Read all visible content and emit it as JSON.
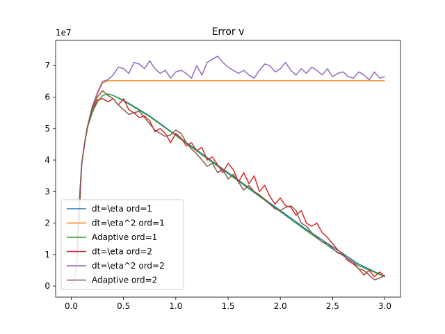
{
  "chart_data": {
    "type": "line",
    "title": "Error v",
    "xlabel": "",
    "ylabel": "",
    "y_multiplier_label": "1e7",
    "xlim": [
      -0.15,
      3.15
    ],
    "ylim": [
      -0.35,
      7.8
    ],
    "xticks": [
      0.0,
      0.5,
      1.0,
      1.5,
      2.0,
      2.5,
      3.0
    ],
    "xtick_labels": [
      "0.0",
      "0.5",
      "1.0",
      "1.5",
      "2.0",
      "2.5",
      "3.0"
    ],
    "yticks": [
      0,
      1,
      2,
      3,
      4,
      5,
      6,
      7
    ],
    "ytick_labels": [
      "0",
      "1",
      "2",
      "3",
      "4",
      "5",
      "6",
      "7"
    ],
    "grid": false,
    "legend_position": "lower-left",
    "series": [
      {
        "name": "dt=\\eta ord=1",
        "color": "#1f77b4",
        "x": [
          0.05,
          0.08,
          0.1,
          0.13,
          0.16,
          0.2,
          0.25,
          0.3,
          0.35,
          0.4,
          0.5,
          0.75,
          1.0,
          1.25,
          1.5,
          1.75,
          2.0,
          2.25,
          2.5,
          2.75,
          3.0
        ],
        "y": [
          1.0,
          2.9,
          3.9,
          4.6,
          5.1,
          5.5,
          5.85,
          6.05,
          6.1,
          6.05,
          5.9,
          5.4,
          4.8,
          4.2,
          3.6,
          3.0,
          2.4,
          1.8,
          1.25,
          0.7,
          0.3
        ]
      },
      {
        "name": "dt=\\eta^2 ord=1",
        "color": "#ff7f0e",
        "x": [
          0.05,
          0.08,
          0.1,
          0.13,
          0.16,
          0.2,
          0.25,
          0.3,
          0.35,
          0.4,
          0.5,
          1.0,
          1.5,
          2.0,
          2.5,
          3.0
        ],
        "y": [
          1.0,
          2.9,
          3.9,
          4.6,
          5.1,
          5.6,
          6.1,
          6.45,
          6.52,
          6.52,
          6.52,
          6.52,
          6.52,
          6.52,
          6.52,
          6.52
        ]
      },
      {
        "name": "Adaptive ord=1",
        "color": "#2ca02c",
        "x": [
          0.05,
          0.08,
          0.1,
          0.13,
          0.16,
          0.2,
          0.25,
          0.3,
          0.35,
          0.4,
          0.5,
          0.75,
          1.0,
          1.25,
          1.5,
          1.75,
          2.0,
          2.25,
          2.5,
          2.75,
          3.0
        ],
        "y": [
          1.0,
          2.9,
          3.9,
          4.6,
          5.1,
          5.5,
          5.85,
          6.05,
          6.1,
          6.05,
          5.88,
          5.38,
          4.78,
          4.17,
          3.57,
          2.97,
          2.36,
          1.76,
          1.18,
          0.65,
          0.3
        ]
      },
      {
        "name": "dt=\\eta ord=2",
        "color": "#d62728",
        "x": [
          0.05,
          0.1,
          0.15,
          0.2,
          0.25,
          0.3,
          0.35,
          0.4,
          0.45,
          0.5,
          0.55,
          0.6,
          0.65,
          0.7,
          0.75,
          0.8,
          0.85,
          0.9,
          0.95,
          1.0,
          1.05,
          1.1,
          1.15,
          1.2,
          1.25,
          1.3,
          1.35,
          1.4,
          1.45,
          1.5,
          1.55,
          1.6,
          1.65,
          1.7,
          1.75,
          1.8,
          1.85,
          1.9,
          1.95,
          2.0,
          2.05,
          2.1,
          2.15,
          2.2,
          2.25,
          2.3,
          2.35,
          2.4,
          2.45,
          2.5,
          2.55,
          2.6,
          2.65,
          2.7,
          2.75,
          2.8,
          2.85,
          2.9,
          2.95,
          3.0
        ],
        "y": [
          1.0,
          3.9,
          5.0,
          5.6,
          5.9,
          5.95,
          5.85,
          5.95,
          5.75,
          5.95,
          5.6,
          5.5,
          5.35,
          5.4,
          5.25,
          4.9,
          5.0,
          4.85,
          4.55,
          4.85,
          4.7,
          4.45,
          4.55,
          4.3,
          4.4,
          4.0,
          4.1,
          3.85,
          3.6,
          3.9,
          3.7,
          3.3,
          3.6,
          3.25,
          3.5,
          3.0,
          3.2,
          2.85,
          2.6,
          2.8,
          2.55,
          2.5,
          2.25,
          2.4,
          2.0,
          1.9,
          2.0,
          1.7,
          1.55,
          1.35,
          1.15,
          1.0,
          0.8,
          0.7,
          0.55,
          0.35,
          0.5,
          0.3,
          0.45,
          0.3
        ]
      },
      {
        "name": "dt=\\eta^2 ord=2",
        "color": "#9467bd",
        "x": [
          0.05,
          0.1,
          0.15,
          0.2,
          0.25,
          0.3,
          0.35,
          0.4,
          0.45,
          0.5,
          0.55,
          0.6,
          0.65,
          0.7,
          0.75,
          0.8,
          0.85,
          0.9,
          0.95,
          1.0,
          1.05,
          1.1,
          1.15,
          1.2,
          1.25,
          1.3,
          1.35,
          1.4,
          1.45,
          1.5,
          1.55,
          1.6,
          1.65,
          1.7,
          1.75,
          1.8,
          1.85,
          1.9,
          1.95,
          2.0,
          2.05,
          2.1,
          2.15,
          2.2,
          2.25,
          2.3,
          2.35,
          2.4,
          2.45,
          2.5,
          2.55,
          2.6,
          2.65,
          2.7,
          2.75,
          2.8,
          2.85,
          2.9,
          2.95,
          3.0
        ],
        "y": [
          1.0,
          3.9,
          5.0,
          5.7,
          6.15,
          6.5,
          6.55,
          6.7,
          6.95,
          6.9,
          6.75,
          7.1,
          7.05,
          6.9,
          7.15,
          6.9,
          6.75,
          6.85,
          6.6,
          6.8,
          6.85,
          6.75,
          6.6,
          7.0,
          6.7,
          7.1,
          7.2,
          7.3,
          7.1,
          6.95,
          6.85,
          6.75,
          6.85,
          6.7,
          6.6,
          6.85,
          7.05,
          7.0,
          6.8,
          6.9,
          7.1,
          6.85,
          6.7,
          6.9,
          6.75,
          6.95,
          6.85,
          6.7,
          6.9,
          6.65,
          6.75,
          6.8,
          6.65,
          6.6,
          6.8,
          6.7,
          6.55,
          6.8,
          6.6,
          6.65
        ]
      },
      {
        "name": "Adaptive ord=2",
        "color": "#8c564b",
        "x": [
          0.0,
          0.03,
          0.06,
          0.1,
          0.15,
          0.2,
          0.25,
          0.3,
          0.35,
          0.4,
          0.45,
          0.5,
          0.55,
          0.6,
          0.65,
          0.7,
          0.75,
          0.8,
          0.85,
          0.9,
          0.95,
          1.0,
          1.05,
          1.1,
          1.15,
          1.2,
          1.25,
          1.3,
          1.35,
          1.4,
          1.45,
          1.5,
          1.55,
          1.6,
          1.65,
          1.7,
          1.75,
          1.8,
          1.85,
          1.9,
          1.95,
          2.0,
          2.05,
          2.1,
          2.15,
          2.2,
          2.25,
          2.3,
          2.35,
          2.4,
          2.45,
          2.5,
          2.55,
          2.6,
          2.65,
          2.7,
          2.75,
          2.8,
          2.85,
          2.9,
          2.95,
          3.0
        ],
        "y": [
          0.05,
          0.2,
          1.0,
          3.9,
          5.0,
          5.65,
          6.0,
          6.2,
          6.05,
          5.95,
          5.75,
          5.6,
          5.45,
          5.5,
          5.55,
          5.35,
          5.15,
          4.95,
          4.85,
          4.75,
          4.8,
          4.95,
          4.85,
          4.55,
          4.35,
          4.2,
          4.0,
          3.8,
          3.9,
          3.6,
          3.7,
          3.4,
          3.55,
          3.3,
          3.05,
          3.2,
          3.0,
          2.9,
          2.75,
          2.6,
          2.45,
          2.4,
          2.5,
          2.55,
          2.4,
          2.0,
          1.9,
          1.7,
          1.55,
          1.4,
          1.35,
          1.2,
          1.05,
          1.0,
          0.85,
          0.75,
          0.55,
          0.5,
          0.35,
          0.2,
          0.25,
          0.35
        ]
      }
    ]
  }
}
